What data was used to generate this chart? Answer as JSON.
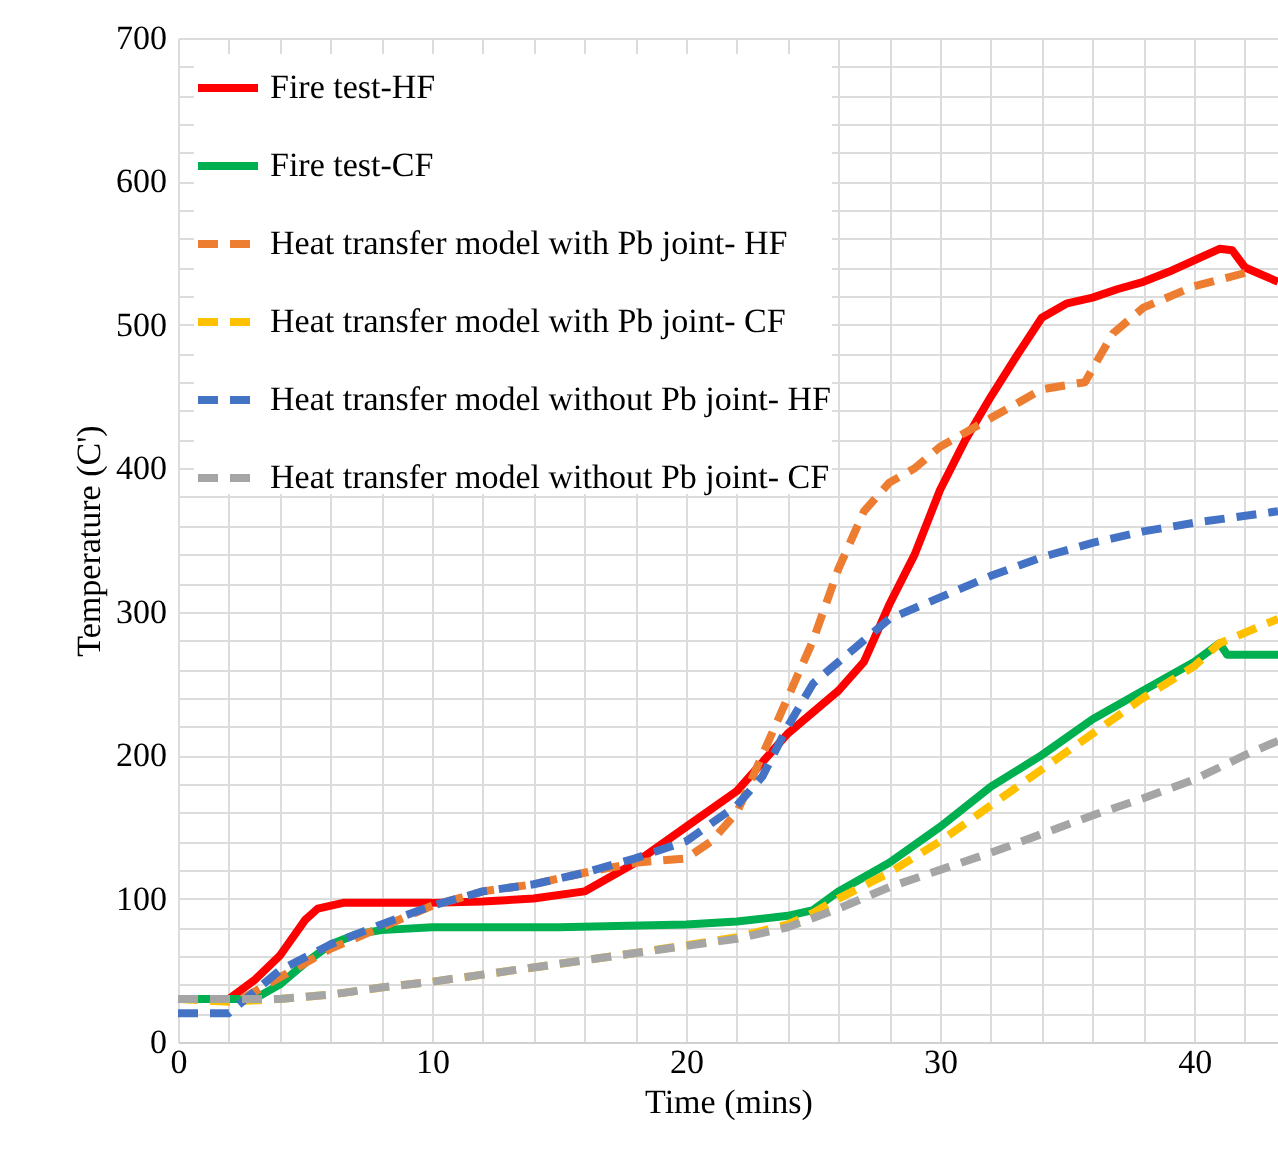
{
  "chart_data": {
    "type": "line",
    "xlabel": "Time (mins)",
    "ylabel": "Temperature (C')",
    "xlim": [
      0,
      43.3
    ],
    "ylim": [
      0,
      700
    ],
    "xticks": [
      0,
      {
        "value": 2,
        "label": null
      },
      {
        "value": 4,
        "label": null
      },
      {
        "value": 6,
        "label": null
      },
      {
        "value": 8,
        "label": null
      },
      10,
      {
        "value": 12,
        "label": null
      },
      {
        "value": 14,
        "label": null
      },
      {
        "value": 16,
        "label": null
      },
      {
        "value": 18,
        "label": null
      },
      20,
      {
        "value": 22,
        "label": null
      },
      {
        "value": 24,
        "label": null
      },
      {
        "value": 26,
        "label": null
      },
      {
        "value": 28,
        "label": null
      },
      30,
      {
        "value": 32,
        "label": null
      },
      {
        "value": 34,
        "label": null
      },
      {
        "value": 36,
        "label": null
      },
      {
        "value": 38,
        "label": null
      },
      40,
      {
        "value": 42,
        "label": null
      }
    ],
    "yticks": [
      0,
      {
        "value": 20,
        "label": null
      },
      {
        "value": 40,
        "label": null
      },
      {
        "value": 60,
        "label": null
      },
      {
        "value": 80,
        "label": null
      },
      100,
      {
        "value": 120,
        "label": null
      },
      {
        "value": 140,
        "label": null
      },
      {
        "value": 160,
        "label": null
      },
      {
        "value": 180,
        "label": null
      },
      200,
      {
        "value": 220,
        "label": null
      },
      {
        "value": 240,
        "label": null
      },
      {
        "value": 260,
        "label": null
      },
      {
        "value": 280,
        "label": null
      },
      300,
      {
        "value": 320,
        "label": null
      },
      {
        "value": 340,
        "label": null
      },
      {
        "value": 360,
        "label": null
      },
      {
        "value": 380,
        "label": null
      },
      400,
      {
        "value": 420,
        "label": null
      },
      {
        "value": 440,
        "label": null
      },
      {
        "value": 460,
        "label": null
      },
      {
        "value": 480,
        "label": null
      },
      500,
      {
        "value": 520,
        "label": null
      },
      {
        "value": 540,
        "label": null
      },
      {
        "value": 560,
        "label": null
      },
      {
        "value": 580,
        "label": null
      },
      600,
      {
        "value": 620,
        "label": null
      },
      {
        "value": 640,
        "label": null
      },
      {
        "value": 660,
        "label": null
      },
      {
        "value": 680,
        "label": null
      },
      700
    ],
    "grid": true,
    "legend": "top left",
    "series": [
      {
        "name": "Fire test-HF",
        "color": "#ff0000",
        "line_style": "solid",
        "x": [
          0,
          2,
          3,
          4,
          5,
          5.5,
          6.5,
          10,
          12,
          14,
          16,
          18,
          20,
          22,
          23,
          24,
          25,
          26,
          27,
          28,
          29,
          30,
          31,
          32,
          33,
          34,
          35,
          36,
          37,
          38,
          39,
          40,
          41,
          41.5,
          42,
          43.3
        ],
        "values": [
          30,
          30,
          43,
          60,
          85,
          93,
          97,
          97,
          98,
          100,
          105,
          125,
          150,
          175,
          195,
          215,
          230,
          245,
          265,
          305,
          340,
          385,
          420,
          450,
          478,
          505,
          515,
          519,
          525,
          530,
          537,
          545,
          553,
          552,
          540,
          530
        ]
      },
      {
        "name": "Fire test-CF",
        "color": "#00b050",
        "line_style": "solid",
        "x": [
          0,
          3,
          4,
          5,
          6,
          7,
          8,
          10,
          15,
          20,
          22,
          24,
          25,
          26,
          28,
          30,
          32,
          34,
          36,
          38,
          40,
          41,
          41.3,
          43.3
        ],
        "values": [
          30,
          30,
          40,
          55,
          68,
          75,
          78,
          80,
          80,
          82,
          84,
          88,
          92,
          105,
          125,
          150,
          178,
          200,
          225,
          245,
          265,
          278,
          270,
          270
        ]
      },
      {
        "name": "Heat transfer model with Pb joint- HF",
        "color": "#ed7d31",
        "line_style": "dashed",
        "x": [
          0,
          2.5,
          4,
          6,
          8,
          10,
          12,
          14,
          16,
          18,
          20,
          21,
          22,
          23,
          24,
          25,
          26,
          27,
          28,
          29,
          30,
          31,
          32,
          33,
          34,
          35,
          35.7,
          36.8,
          38,
          40,
          42.4
        ],
        "values": [
          30,
          30,
          45,
          65,
          80,
          95,
          105,
          110,
          118,
          125,
          128,
          140,
          160,
          200,
          240,
          280,
          330,
          370,
          390,
          400,
          415,
          425,
          435,
          445,
          455,
          458,
          460,
          494,
          512,
          527,
          538
        ]
      },
      {
        "name": "Heat transfer model with Pb joint- CF",
        "color": "#ffc000",
        "line_style": "dashed",
        "x": [
          0,
          2,
          4,
          6,
          8,
          10,
          14,
          18,
          22,
          24,
          25,
          26,
          28,
          30,
          32,
          34,
          36,
          38,
          40,
          41,
          43.3
        ],
        "values": [
          30,
          28,
          30,
          33,
          38,
          42,
          52,
          62,
          73,
          82,
          90,
          100,
          118,
          140,
          165,
          190,
          215,
          240,
          262,
          278,
          295
        ]
      },
      {
        "name": "Heat transfer model without Pb joint- HF",
        "color": "#4472c4",
        "line_style": "dashed",
        "x": [
          0,
          2,
          3,
          4,
          6,
          8,
          10,
          12,
          14,
          16,
          18,
          20,
          22,
          23,
          24,
          25,
          26,
          27,
          28,
          30,
          32,
          34,
          36,
          38,
          40,
          43.3
        ],
        "values": [
          20,
          20,
          35,
          50,
          68,
          82,
          95,
          105,
          110,
          118,
          128,
          140,
          165,
          185,
          220,
          250,
          265,
          280,
          295,
          310,
          325,
          338,
          348,
          356,
          362,
          370
        ]
      },
      {
        "name": "Heat transfer model without Pb joint- CF",
        "color": "#a5a5a5",
        "line_style": "dashed",
        "x": [
          0,
          4,
          6,
          8,
          10,
          14,
          18,
          22,
          24,
          26,
          28,
          30,
          32,
          34,
          36,
          38,
          40,
          42,
          43.3
        ],
        "values": [
          30,
          30,
          33,
          38,
          42,
          52,
          62,
          72,
          80,
          93,
          108,
          120,
          132,
          145,
          158,
          170,
          183,
          200,
          210
        ]
      }
    ]
  }
}
